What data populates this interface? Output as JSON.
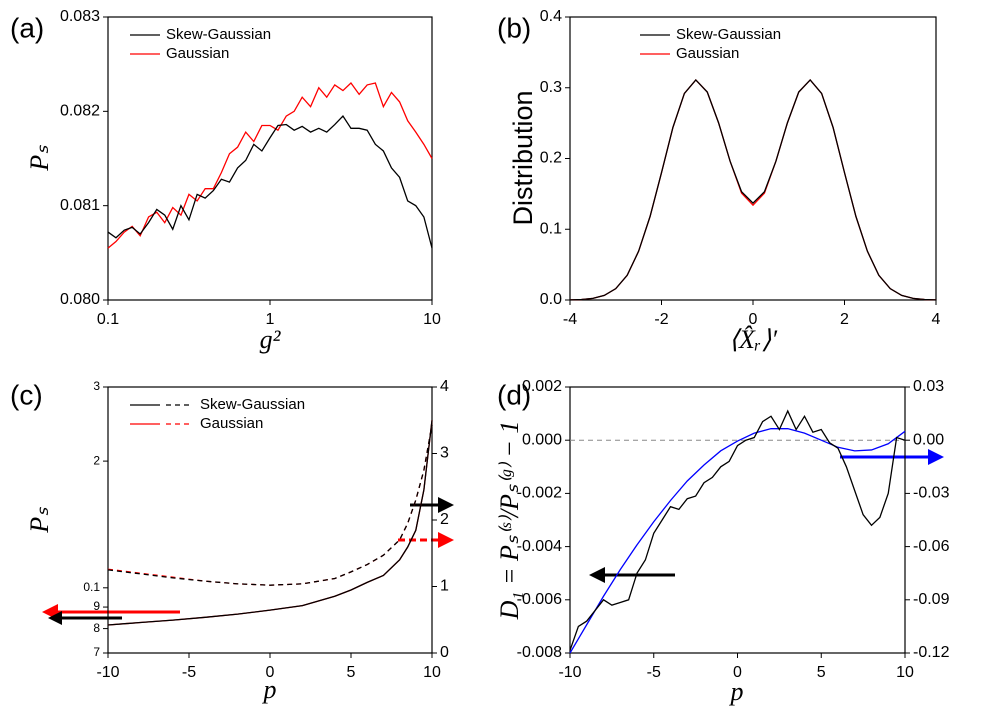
{
  "chart_data": [
    {
      "type": "line",
      "panel_label": "(a)",
      "xlabel": "g²",
      "ylabel": "Pₛ",
      "xscale": "log",
      "xlim": [
        0.1,
        10
      ],
      "xticks": [
        0.1,
        1,
        10
      ],
      "ylim": [
        0.08,
        0.083
      ],
      "yticks": [
        {
          "value": 0.08,
          "label": "0.080"
        },
        {
          "value": 0.081,
          "label": "0.081"
        },
        {
          "value": 0.082,
          "label": "0.082"
        },
        {
          "value": 0.083,
          "label": "0.083"
        }
      ],
      "legend": "upper left",
      "x": [
        0.1,
        0.112,
        0.126,
        0.141,
        0.158,
        0.178,
        0.2,
        0.224,
        0.251,
        0.282,
        0.316,
        0.355,
        0.398,
        0.447,
        0.501,
        0.562,
        0.631,
        0.708,
        0.794,
        0.891,
        1,
        1.12,
        1.26,
        1.41,
        1.58,
        1.78,
        2,
        2.24,
        2.51,
        2.82,
        3.16,
        3.55,
        3.98,
        4.47,
        5.01,
        5.62,
        6.31,
        7.08,
        7.94,
        8.91,
        10
      ],
      "series": [
        {
          "name": "Skew-Gaussian",
          "color": "#000000",
          "values": [
            0.08072,
            0.08066,
            0.08074,
            0.08077,
            0.0807,
            0.08082,
            0.08096,
            0.0809,
            0.08075,
            0.081,
            0.08085,
            0.08112,
            0.08108,
            0.08116,
            0.08128,
            0.08125,
            0.0814,
            0.08148,
            0.08165,
            0.08158,
            0.08172,
            0.08185,
            0.08186,
            0.0818,
            0.08184,
            0.08178,
            0.08182,
            0.08178,
            0.08186,
            0.08195,
            0.08182,
            0.08182,
            0.0818,
            0.08165,
            0.08158,
            0.0814,
            0.0813,
            0.08105,
            0.081,
            0.08088,
            0.08055
          ]
        },
        {
          "name": "Gaussian",
          "color": "#ff0000",
          "values": [
            0.08055,
            0.08062,
            0.08072,
            0.08078,
            0.08068,
            0.08088,
            0.08093,
            0.08082,
            0.08098,
            0.0809,
            0.08112,
            0.08105,
            0.08118,
            0.08118,
            0.08135,
            0.08155,
            0.08162,
            0.08178,
            0.08168,
            0.08185,
            0.08185,
            0.0818,
            0.08195,
            0.082,
            0.08215,
            0.08205,
            0.08225,
            0.08215,
            0.08228,
            0.08222,
            0.0823,
            0.08218,
            0.08228,
            0.0823,
            0.08205,
            0.0822,
            0.0821,
            0.0819,
            0.08178,
            0.08165,
            0.0815
          ]
        }
      ]
    },
    {
      "type": "line",
      "panel_label": "(b)",
      "xlabel": "⟨X̂ᵣ⟩′",
      "ylabel": "Distribution",
      "xlim": [
        -4,
        4
      ],
      "xticks": [
        -4,
        -2,
        0,
        2,
        4
      ],
      "ylim": [
        0,
        0.4
      ],
      "yticks": [
        {
          "value": 0,
          "label": "0.0"
        },
        0.1,
        0.2,
        0.3,
        0.4
      ],
      "legend": "upper center",
      "x": [
        -4,
        -3.75,
        -3.5,
        -3.25,
        -3,
        -2.75,
        -2.5,
        -2.25,
        -2,
        -1.75,
        -1.5,
        -1.25,
        -1,
        -0.75,
        -0.5,
        -0.25,
        0,
        0.25,
        0.5,
        0.75,
        1,
        1.25,
        1.5,
        1.75,
        2,
        2.25,
        2.5,
        2.75,
        3,
        3.25,
        3.5,
        3.75,
        4
      ],
      "series": [
        {
          "name": "Skew-Gaussian",
          "color": "#000000",
          "values": [
            0.0002,
            0.0007,
            0.0023,
            0.0065,
            0.016,
            0.035,
            0.069,
            0.118,
            0.18,
            0.244,
            0.292,
            0.311,
            0.294,
            0.25,
            0.196,
            0.153,
            0.137,
            0.153,
            0.196,
            0.25,
            0.294,
            0.311,
            0.292,
            0.244,
            0.18,
            0.118,
            0.069,
            0.035,
            0.016,
            0.0065,
            0.0023,
            0.0007,
            0.0002
          ]
        },
        {
          "name": "Gaussian",
          "color": "#ff0000",
          "values": [
            0.0002,
            0.0007,
            0.0023,
            0.0065,
            0.016,
            0.035,
            0.069,
            0.118,
            0.18,
            0.244,
            0.292,
            0.311,
            0.294,
            0.25,
            0.196,
            0.151,
            0.134,
            0.151,
            0.196,
            0.25,
            0.294,
            0.311,
            0.292,
            0.244,
            0.18,
            0.118,
            0.069,
            0.035,
            0.016,
            0.0065,
            0.0023,
            0.0007,
            0.0002
          ]
        }
      ]
    },
    {
      "type": "line",
      "panel_label": "(c)",
      "xlabel": "p",
      "ylabel": "Pₛ",
      "yscale": "log",
      "xlim": [
        -10,
        10
      ],
      "xticks": [
        -10,
        -5,
        0,
        5,
        10
      ],
      "ylim": [
        0.07,
        0.3
      ],
      "yticks": [
        {
          "value": 0.07,
          "label": "7"
        },
        {
          "value": 0.08,
          "label": "8"
        },
        {
          "value": 0.09,
          "label": "9"
        },
        0.1,
        {
          "value": 0.2,
          "label": "2"
        },
        {
          "value": 0.3,
          "label": "3"
        }
      ],
      "y2lim": [
        0,
        4
      ],
      "y2ticks": [
        0,
        1,
        2,
        3,
        4
      ],
      "legend": "upper left",
      "x": [
        -10,
        -8,
        -6,
        -4,
        -2,
        0,
        2,
        4,
        5,
        6,
        7,
        8,
        8.5,
        9,
        9.5,
        10
      ],
      "series": [
        {
          "name": "Skew-Gaussian",
          "color": "#000000",
          "values": [
            0.0816,
            0.0827,
            0.0838,
            0.0851,
            0.0866,
            0.0885,
            0.0907,
            0.0955,
            0.0988,
            0.103,
            0.107,
            0.1165,
            0.125,
            0.137,
            0.171,
            0.25
          ],
          "values_y2": [
            1.25,
            1.19,
            1.13,
            1.08,
            1.04,
            1.02,
            1.04,
            1.12,
            1.22,
            1.33,
            1.47,
            1.7,
            1.95,
            2.3,
            2.75,
            3.43
          ]
        },
        {
          "name": "Gaussian",
          "color": "#ff0000",
          "values": [
            0.0816,
            0.0827,
            0.0838,
            0.0851,
            0.0866,
            0.0885,
            0.0907,
            0.0955,
            0.0988,
            0.103,
            0.107,
            0.1165,
            0.125,
            0.137,
            0.171,
            0.25
          ],
          "values_y2": [
            1.26,
            1.2,
            1.14,
            1.08,
            1.04,
            1.02,
            1.04,
            1.12,
            1.22,
            1.33,
            1.47,
            1.7,
            1.95,
            2.3,
            2.75,
            3.43
          ]
        }
      ]
    },
    {
      "type": "line",
      "panel_label": "(d)",
      "xlabel": "p",
      "ylabel": "D₁ = Pₛ⁽ˢ⁾/Pₛ⁽ᵍ⁾ − 1",
      "xlim": [
        -10,
        10
      ],
      "xticks": [
        -10,
        -5,
        0,
        5,
        10
      ],
      "ylim": [
        -0.008,
        0.002
      ],
      "yticks": [
        -0.008,
        -0.006,
        -0.004,
        -0.002,
        {
          "value": 0,
          "label": "0.000"
        },
        0.002
      ],
      "y2lim": [
        -0.12,
        0.03
      ],
      "y2ticks": [
        -0.12,
        -0.09,
        -0.06,
        -0.03,
        {
          "value": 0,
          "label": "0.00"
        },
        0.03
      ],
      "reference_line": 0,
      "series": [
        {
          "color": "#000000",
          "x": [
            -10,
            -9.5,
            -9,
            -8.5,
            -8,
            -7.5,
            -7,
            -6.5,
            -6,
            -5.5,
            -5,
            -4.5,
            -4,
            -3.5,
            -3,
            -2.5,
            -2,
            -1.5,
            -1,
            -0.5,
            0,
            0.5,
            1,
            1.5,
            2,
            2.5,
            3,
            3.5,
            4,
            4.5,
            5,
            5.5,
            6,
            6.5,
            7,
            7.5,
            8,
            8.5,
            9,
            9.5,
            10
          ],
          "values": [
            -0.0079,
            -0.007,
            -0.0068,
            -0.0064,
            -0.006,
            -0.0062,
            -0.0061,
            -0.006,
            -0.005,
            -0.0045,
            -0.0035,
            -0.003,
            -0.0025,
            -0.0026,
            -0.0022,
            -0.0021,
            -0.0016,
            -0.0014,
            -0.001,
            -0.0008,
            -0.0002,
            0,
            0.0001,
            0.0007,
            0.0009,
            0.0004,
            0.0011,
            0.0004,
            0.0009,
            0.0003,
            0.0004,
            -0.0001,
            -0.0003,
            -0.001,
            -0.0019,
            -0.0028,
            -0.0032,
            -0.0029,
            -0.002,
            0.0001,
            0
          ]
        },
        {
          "color": "#0000ff",
          "axis": "y2",
          "x": [
            -10,
            -9,
            -8,
            -7,
            -6,
            -5,
            -4,
            -3,
            -2,
            -1,
            0,
            1,
            2,
            3,
            4,
            5,
            6,
            7,
            8,
            9,
            10
          ],
          "values": [
            -0.12,
            -0.104,
            -0.088,
            -0.073,
            -0.059,
            -0.046,
            -0.034,
            -0.023,
            -0.014,
            -0.006,
            -0.0005,
            0.004,
            0.0065,
            0.0065,
            0.004,
            0,
            -0.004,
            -0.006,
            -0.0055,
            -0.002,
            0.005
          ]
        }
      ]
    }
  ]
}
